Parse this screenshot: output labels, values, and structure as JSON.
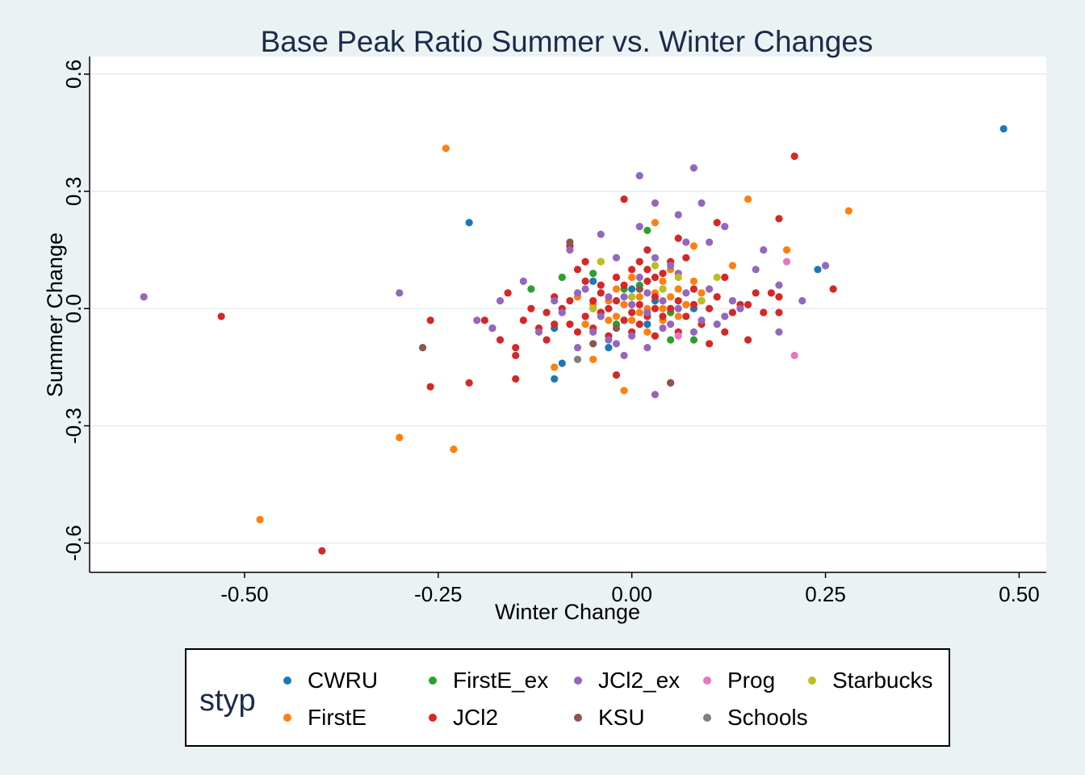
{
  "chart_data": {
    "type": "scatter",
    "title": "Base Peak Ratio Summer vs. Winter Changes",
    "xlabel": "Winter Change",
    "ylabel": "Summer Change",
    "xlim": [
      -0.7,
      0.535
    ],
    "ylim": [
      -0.675,
      0.645
    ],
    "xticks": [
      -0.5,
      -0.25,
      0.0,
      0.25,
      0.5
    ],
    "xtick_labels": [
      "-0.50",
      "-0.25",
      "0.00",
      "0.25",
      "0.50"
    ],
    "yticks": [
      -0.6,
      -0.3,
      0.0,
      0.3,
      0.6
    ],
    "ytick_labels": [
      "-0.6",
      "-0.3",
      "0.0",
      "0.3",
      "0.6"
    ],
    "grid": "horizontal",
    "legend": {
      "title": "styp",
      "position": "bottom"
    },
    "series": [
      {
        "name": "CWRU",
        "color": "#1f77b4",
        "points": [
          [
            0.48,
            0.46
          ],
          [
            -0.21,
            0.22
          ],
          [
            0.24,
            0.1
          ],
          [
            -0.1,
            -0.18
          ],
          [
            -0.09,
            -0.14
          ],
          [
            -0.03,
            -0.1
          ],
          [
            -0.05,
            0.07
          ],
          [
            0.0,
            0.05
          ],
          [
            0.08,
            0.0
          ],
          [
            -0.1,
            -0.05
          ],
          [
            0.02,
            -0.04
          ],
          [
            0.03,
            0.02
          ]
        ]
      },
      {
        "name": "FirstE",
        "color": "#ff7f0e",
        "points": [
          [
            -0.24,
            0.41
          ],
          [
            -0.3,
            -0.33
          ],
          [
            -0.23,
            -0.36
          ],
          [
            -0.48,
            -0.54
          ],
          [
            0.15,
            0.28
          ],
          [
            0.28,
            0.25
          ],
          [
            0.03,
            0.22
          ],
          [
            0.2,
            0.15
          ],
          [
            0.13,
            0.11
          ],
          [
            0.08,
            0.16
          ],
          [
            -0.1,
            -0.15
          ],
          [
            -0.05,
            -0.13
          ],
          [
            -0.01,
            -0.21
          ],
          [
            0.05,
            0.1
          ],
          [
            0.04,
            0.07
          ],
          [
            -0.04,
            0.12
          ],
          [
            -0.03,
            0.02
          ],
          [
            0.02,
            0.0
          ],
          [
            0.06,
            -0.02
          ],
          [
            -0.02,
            -0.02
          ],
          [
            0.01,
            0.03
          ],
          [
            -0.04,
            -0.01
          ],
          [
            0.08,
            0.07
          ],
          [
            0.0,
            0.08
          ],
          [
            -0.06,
            -0.04
          ],
          [
            0.04,
            0.0
          ],
          [
            0.09,
            0.04
          ],
          [
            -0.02,
            0.05
          ],
          [
            0.02,
            -0.06
          ],
          [
            0.0,
            -0.03
          ],
          [
            -0.01,
            0.01
          ],
          [
            0.03,
            0.04
          ],
          [
            -0.03,
            -0.03
          ],
          [
            0.05,
            0.03
          ],
          [
            0.01,
            -0.01
          ],
          [
            -0.05,
            0.01
          ],
          [
            0.07,
            0.01
          ],
          [
            0.06,
            0.05
          ],
          [
            -0.07,
            0.03
          ],
          [
            0.04,
            -0.03
          ]
        ]
      },
      {
        "name": "FirstE_ex",
        "color": "#2ca02c",
        "points": [
          [
            0.02,
            0.2
          ],
          [
            -0.09,
            0.08
          ],
          [
            -0.13,
            0.05
          ],
          [
            -0.05,
            0.09
          ],
          [
            0.08,
            -0.08
          ],
          [
            0.05,
            -0.08
          ],
          [
            -0.02,
            -0.04
          ],
          [
            0.01,
            0.06
          ],
          [
            0.05,
            -0.01
          ],
          [
            -0.01,
            0.05
          ]
        ]
      },
      {
        "name": "JCl2",
        "color": "#d62728",
        "points": [
          [
            -0.53,
            -0.02
          ],
          [
            -0.4,
            -0.62
          ],
          [
            0.21,
            0.39
          ],
          [
            -0.01,
            0.28
          ],
          [
            0.11,
            0.22
          ],
          [
            0.19,
            0.23
          ],
          [
            0.26,
            0.05
          ],
          [
            -0.26,
            -0.2
          ],
          [
            -0.21,
            -0.19
          ],
          [
            -0.15,
            -0.18
          ],
          [
            -0.26,
            -0.03
          ],
          [
            -0.15,
            -0.1
          ],
          [
            -0.15,
            -0.12
          ],
          [
            -0.18,
            -0.05
          ],
          [
            -0.19,
            -0.03
          ],
          [
            -0.17,
            -0.08
          ],
          [
            -0.16,
            0.04
          ],
          [
            -0.14,
            -0.03
          ],
          [
            -0.13,
            0.0
          ],
          [
            -0.11,
            -0.01
          ],
          [
            -0.1,
            0.03
          ],
          [
            -0.08,
            0.16
          ],
          [
            -0.07,
            0.1
          ],
          [
            -0.06,
            0.07
          ],
          [
            -0.06,
            -0.02
          ],
          [
            -0.05,
            -0.05
          ],
          [
            -0.04,
            0.04
          ],
          [
            -0.03,
            -0.07
          ],
          [
            -0.02,
            -0.17
          ],
          [
            -0.01,
            0.06
          ],
          [
            0.0,
            0.1
          ],
          [
            0.01,
            0.12
          ],
          [
            0.02,
            0.15
          ],
          [
            0.03,
            0.08
          ],
          [
            0.04,
            -0.02
          ],
          [
            0.05,
            -0.19
          ],
          [
            0.06,
            0.18
          ],
          [
            0.07,
            0.13
          ],
          [
            0.08,
            0.05
          ],
          [
            0.09,
            -0.04
          ],
          [
            0.1,
            -0.09
          ],
          [
            0.11,
            0.03
          ],
          [
            0.12,
            0.08
          ],
          [
            0.13,
            -0.01
          ],
          [
            0.15,
            -0.08
          ],
          [
            0.16,
            0.04
          ],
          [
            0.17,
            -0.01
          ],
          [
            0.18,
            0.04
          ],
          [
            0.19,
            -0.01
          ],
          [
            0.03,
            0.0
          ],
          [
            -0.02,
            0.02
          ],
          [
            0.01,
            -0.04
          ],
          [
            0.04,
            0.05
          ],
          [
            -0.04,
            -0.01
          ],
          [
            0.06,
            0.02
          ],
          [
            0.0,
            -0.06
          ],
          [
            0.02,
            0.07
          ],
          [
            -0.03,
            0.0
          ],
          [
            0.05,
            0.12
          ],
          [
            -0.08,
            -0.04
          ],
          [
            -0.09,
            0.0
          ],
          [
            0.07,
            -0.02
          ],
          [
            0.08,
            0.01
          ],
          [
            0.09,
            0.02
          ],
          [
            -0.01,
            -0.03
          ],
          [
            0.02,
            -0.02
          ],
          [
            -0.05,
            0.02
          ],
          [
            0.03,
            -0.07
          ],
          [
            0.0,
            0.03
          ],
          [
            0.01,
            0.01
          ],
          [
            -0.07,
            -0.06
          ],
          [
            -0.12,
            -0.05
          ],
          [
            0.1,
            0.0
          ],
          [
            0.14,
            0.01
          ],
          [
            0.06,
            -0.06
          ],
          [
            -0.06,
            0.12
          ],
          [
            0.04,
            0.09
          ],
          [
            0.02,
            0.1
          ],
          [
            -0.11,
            -0.08
          ],
          [
            0.0,
            -0.01
          ],
          [
            0.01,
            0.05
          ],
          [
            -0.02,
            0.08
          ],
          [
            -0.04,
            0.06
          ],
          [
            0.05,
            0.0
          ],
          [
            -0.08,
            0.02
          ],
          [
            0.03,
            0.03
          ],
          [
            0.12,
            -0.06
          ],
          [
            0.19,
            0.03
          ],
          [
            0.15,
            0.01
          ],
          [
            -0.1,
            -0.04
          ]
        ]
      },
      {
        "name": "JCl2_ex",
        "color": "#9467bd",
        "points": [
          [
            -0.63,
            0.03
          ],
          [
            -0.3,
            0.04
          ],
          [
            0.01,
            0.34
          ],
          [
            0.08,
            0.36
          ],
          [
            0.03,
            0.27
          ],
          [
            0.09,
            0.27
          ],
          [
            0.01,
            0.21
          ],
          [
            0.12,
            0.21
          ],
          [
            0.06,
            0.24
          ],
          [
            -0.04,
            0.19
          ],
          [
            -0.08,
            0.15
          ],
          [
            0.07,
            0.17
          ],
          [
            0.1,
            0.17
          ],
          [
            0.17,
            0.15
          ],
          [
            0.25,
            0.11
          ],
          [
            0.16,
            0.1
          ],
          [
            0.22,
            0.02
          ],
          [
            0.19,
            0.06
          ],
          [
            0.19,
            -0.06
          ],
          [
            0.14,
            0.0
          ],
          [
            0.03,
            -0.22
          ],
          [
            -0.03,
            -0.08
          ],
          [
            0.02,
            -0.1
          ],
          [
            -0.05,
            -0.06
          ],
          [
            -0.07,
            -0.1
          ],
          [
            -0.12,
            -0.06
          ],
          [
            -0.14,
            0.07
          ],
          [
            -0.2,
            -0.03
          ],
          [
            -0.18,
            -0.05
          ],
          [
            -0.17,
            0.02
          ],
          [
            0.04,
            -0.05
          ],
          [
            -0.02,
            0.13
          ],
          [
            -0.01,
            -0.12
          ],
          [
            0.05,
            0.11
          ],
          [
            -0.06,
            0.05
          ],
          [
            0.08,
            -0.06
          ],
          [
            0.09,
            -0.03
          ],
          [
            0.0,
            -0.07
          ],
          [
            0.02,
            0.04
          ],
          [
            -0.03,
            0.03
          ],
          [
            0.07,
            0.04
          ],
          [
            0.01,
            0.08
          ],
          [
            -0.04,
            -0.02
          ],
          [
            0.06,
            0.0
          ],
          [
            0.03,
            0.13
          ],
          [
            0.12,
            -0.02
          ],
          [
            -0.09,
            -0.01
          ],
          [
            -0.1,
            0.02
          ],
          [
            0.04,
            0.02
          ],
          [
            -0.01,
            0.03
          ],
          [
            0.1,
            0.05
          ],
          [
            0.0,
            0.01
          ],
          [
            0.05,
            -0.04
          ],
          [
            -0.05,
            0.0
          ],
          [
            0.02,
            -0.01
          ],
          [
            0.06,
            0.09
          ],
          [
            0.11,
            -0.04
          ],
          [
            -0.02,
            -0.09
          ],
          [
            0.13,
            0.02
          ],
          [
            -0.07,
            0.04
          ]
        ]
      },
      {
        "name": "KSU",
        "color": "#8c564b",
        "points": [
          [
            -0.08,
            0.17
          ],
          [
            -0.27,
            -0.1
          ],
          [
            0.05,
            -0.19
          ],
          [
            -0.05,
            -0.09
          ],
          [
            0.01,
            0.05
          ],
          [
            -0.02,
            -0.05
          ]
        ]
      },
      {
        "name": "Prog",
        "color": "#e377c2",
        "points": [
          [
            0.2,
            0.12
          ],
          [
            0.21,
            -0.12
          ],
          [
            0.06,
            -0.07
          ]
        ]
      },
      {
        "name": "Schools",
        "color": "#7f7f7f",
        "points": [
          [
            -0.07,
            -0.13
          ]
        ]
      },
      {
        "name": "Starbucks",
        "color": "#bcbd22",
        "points": [
          [
            -0.04,
            0.12
          ],
          [
            0.03,
            0.11
          ],
          [
            0.11,
            0.08
          ],
          [
            0.09,
            0.02
          ],
          [
            -0.05,
            0.0
          ],
          [
            0.04,
            0.05
          ],
          [
            0.0,
            0.03
          ],
          [
            0.06,
            0.08
          ]
        ]
      }
    ]
  }
}
